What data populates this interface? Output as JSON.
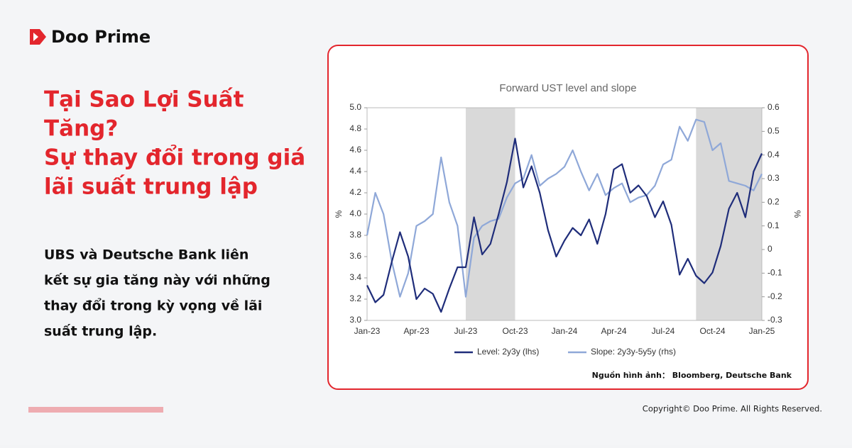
{
  "brand": "Doo Prime",
  "headline": [
    "Tại Sao Lợi Suất",
    "Tăng?",
    "Sự thay đổi trong giá",
    "lãi suất trung lập"
  ],
  "body": [
    "UBS và Deutsche Bank liên",
    "kết sự gia tăng này với những",
    "thay đổi trong kỳ vọng về lãi",
    "suất trung lập."
  ],
  "source": "Nguồn hình ảnh： Bloomberg, Deutsche Bank",
  "copyright": "Copyright© Doo Prime. All Rights Reserved.",
  "chart_data": {
    "type": "line",
    "title": "Forward UST level and slope",
    "ylabel": "%",
    "y2label": "%",
    "categories": [
      "Jan-23",
      null,
      null,
      null,
      null,
      null,
      "Apr-23",
      null,
      null,
      null,
      null,
      null,
      "Jul-23",
      null,
      null,
      null,
      null,
      null,
      "Oct-23",
      null,
      null,
      null,
      null,
      null,
      "Jan-24",
      null,
      null,
      null,
      null,
      null,
      "Apr-24",
      null,
      null,
      null,
      null,
      null,
      "Jul-24",
      null,
      null,
      null,
      null,
      null,
      "Oct-24",
      null,
      null,
      null,
      null,
      null,
      "Jan-25"
    ],
    "shaded_ranges": [
      [
        12,
        18
      ],
      [
        40,
        48
      ]
    ],
    "shade_color": "#d9d9d9",
    "ylim": [
      3.0,
      5.0
    ],
    "yticks": [
      {
        "value": 3.0,
        "label": "3.0"
      },
      {
        "value": 3.2,
        "label": "3.2"
      },
      {
        "value": 3.4,
        "label": "3.4"
      },
      {
        "value": 3.6,
        "label": "3.6"
      },
      {
        "value": 3.8,
        "label": "3.8"
      },
      {
        "value": 4.0,
        "label": "4.0"
      },
      {
        "value": 4.2,
        "label": "4.2"
      },
      {
        "value": 4.4,
        "label": "4.4"
      },
      {
        "value": 4.6,
        "label": "4.6"
      },
      {
        "value": 4.8,
        "label": "4.8"
      },
      {
        "value": 5.0,
        "label": "5.0"
      }
    ],
    "y2lim": [
      -0.3,
      0.6
    ],
    "y2ticks": [
      -0.3,
      -0.2,
      -0.1,
      0,
      0.1,
      0.2,
      0.3,
      0.4,
      0.5,
      0.6
    ],
    "series": [
      {
        "name": "Level: 2y3y (lhs)",
        "color": "#1f2d7a",
        "values": [
          3.33,
          3.17,
          3.24,
          3.55,
          3.83,
          3.6,
          3.2,
          3.3,
          3.25,
          3.08,
          3.3,
          3.5,
          3.5,
          3.97,
          3.62,
          3.72,
          4.0,
          4.3,
          4.71,
          4.25,
          4.45,
          4.2,
          3.85,
          3.6,
          3.75,
          3.87,
          3.8,
          3.95,
          3.72,
          4.0,
          4.42,
          4.47,
          4.2,
          4.27,
          4.17,
          3.97,
          4.12,
          3.9,
          3.43,
          3.58,
          3.42,
          3.35,
          3.45,
          3.7,
          4.05,
          4.2,
          3.97,
          4.4,
          4.57
        ]
      },
      {
        "name": "Slope: 2y3y-5y5y (rhs)",
        "color": "#8fa8d8",
        "axis": "y2",
        "values": [
          0.06,
          0.24,
          0.15,
          -0.05,
          -0.2,
          -0.1,
          0.1,
          0.12,
          0.15,
          0.39,
          0.2,
          0.1,
          -0.2,
          0.05,
          0.1,
          0.12,
          0.13,
          0.22,
          0.28,
          0.3,
          0.4,
          0.27,
          0.3,
          0.32,
          0.35,
          0.42,
          0.33,
          0.25,
          0.32,
          0.23,
          0.26,
          0.28,
          0.2,
          0.22,
          0.23,
          0.27,
          0.36,
          0.38,
          0.52,
          0.46,
          0.55,
          0.54,
          0.42,
          0.45,
          0.29,
          0.28,
          0.27,
          0.25,
          0.32
        ]
      }
    ]
  }
}
